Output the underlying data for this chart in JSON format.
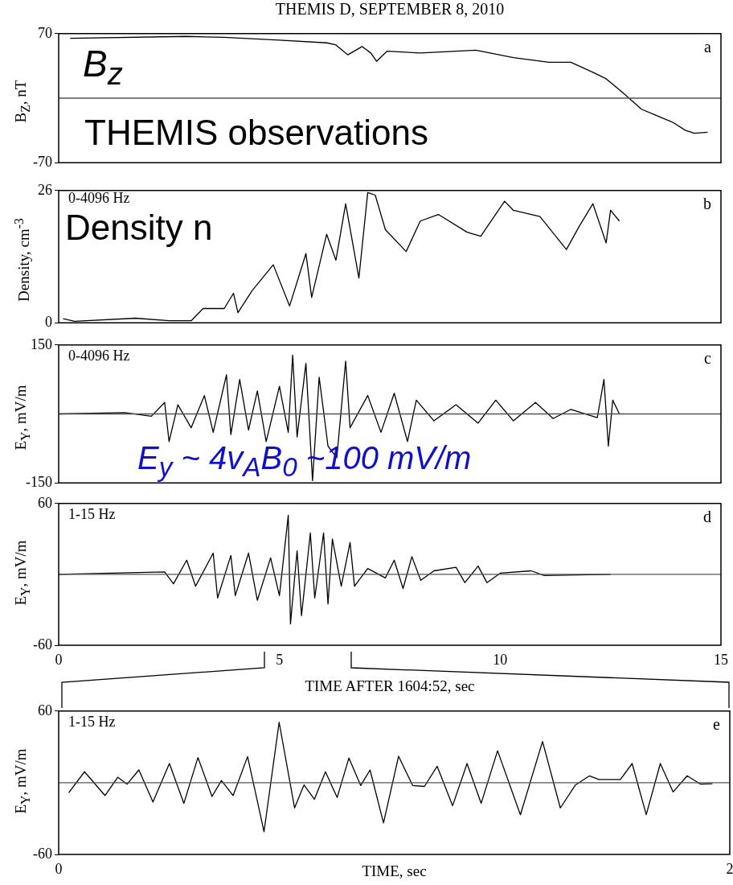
{
  "chart_data": [
    {
      "type": "line",
      "title": "THEMIS D, SEPTEMBER 8, 2010",
      "ylabel": "B$_{Z}$, nT",
      "xlim": [
        0,
        15
      ],
      "ylim": [
        -70,
        70
      ],
      "yticks": [
        -70,
        70
      ],
      "tick_labels": "y",
      "marker": "none",
      "legend": false,
      "grid": false,
      "ref_lines": [
        {
          "axis": "y",
          "value": 0,
          "color": "#555555"
        }
      ],
      "annotations": [
        "a",
        "B$_{z}$",
        "THEMIS observations"
      ],
      "series": [
        {
          "color": "#000000",
          "x": [
            0.26,
            2.9,
            3.74,
            5.0,
            6.07,
            6.27,
            6.55,
            6.87,
            7.07,
            7.2,
            7.44,
            8.19,
            9.45,
            10.3,
            11.1,
            11.6,
            12.1,
            12.4,
            12.8,
            13.2,
            13.5,
            13.9,
            14.2,
            14.4,
            14.7
          ],
          "values": [
            65,
            67,
            66,
            63,
            60,
            58,
            47,
            56,
            49,
            40,
            51,
            49,
            52,
            44,
            39,
            39,
            28,
            21,
            5,
            -12,
            -18,
            -26,
            -35,
            -38,
            -37
          ]
        }
      ]
    },
    {
      "type": "line",
      "ylabel": "Density, cm$^{-3}$",
      "xlim": [
        0,
        15
      ],
      "ylim": [
        0,
        26
      ],
      "yticks": [
        0,
        26
      ],
      "tick_labels": "y",
      "marker": "none",
      "legend": false,
      "grid": false,
      "annotations": [
        "b",
        "0-4096 Hz",
        "Density n"
      ],
      "series": [
        {
          "color": "#000000",
          "x": [
            0.1,
            0.36,
            1.74,
            2.5,
            3.0,
            3.27,
            3.75,
            3.96,
            4.06,
            4.38,
            4.86,
            5.23,
            5.6,
            5.73,
            6.07,
            6.28,
            6.5,
            6.8,
            7.0,
            7.17,
            7.4,
            7.87,
            8.19,
            8.6,
            9.25,
            9.56,
            10.1,
            10.3,
            10.9,
            11.5,
            11.8,
            12.1,
            12.4,
            12.5,
            12.7
          ],
          "values": [
            0.8,
            0.3,
            0.9,
            0.4,
            0.4,
            2.8,
            2.8,
            5.8,
            2,
            6.3,
            11.4,
            3.3,
            13.6,
            5,
            17.4,
            12.3,
            23.4,
            8.8,
            25.6,
            25.1,
            18.3,
            14,
            20,
            21.3,
            17.8,
            17,
            23.9,
            22.1,
            20.9,
            14.4,
            19.1,
            23.4,
            15.7,
            22.1,
            20
          ]
        }
      ]
    },
    {
      "type": "line",
      "ylabel": "E$_{Y}$, mV/m",
      "xlim": [
        0,
        15
      ],
      "ylim": [
        -150,
        150
      ],
      "yticks": [
        -150,
        150
      ],
      "tick_labels": "y",
      "marker": "none",
      "legend": false,
      "grid": false,
      "ref_lines": [
        {
          "axis": "y",
          "value": 0,
          "color": "#555555"
        }
      ],
      "annotations": [
        "c",
        "0-4096 Hz",
        "E$_{y}$ ~ 4v$_{A}$B$_{0}$ ~100 mV/m"
      ],
      "series": [
        {
          "color": "#000000",
          "x": [
            0,
            1.5,
            2.1,
            2.4,
            2.5,
            2.7,
            3.0,
            3.3,
            3.5,
            3.8,
            3.9,
            4.1,
            4.3,
            4.5,
            4.7,
            5.0,
            5.2,
            5.3,
            5.4,
            5.6,
            5.75,
            5.9,
            6.1,
            6.3,
            6.5,
            6.6,
            7.0,
            7.3,
            7.6,
            7.9,
            8.1,
            8.5,
            9.0,
            9.5,
            9.9,
            10.3,
            10.8,
            11.2,
            11.6,
            12.2,
            12.35,
            12.45,
            12.55,
            12.7
          ],
          "values": [
            0,
            3,
            -5,
            25,
            -60,
            20,
            -30,
            40,
            -40,
            85,
            -45,
            75,
            -35,
            50,
            -60,
            60,
            -40,
            128,
            -50,
            110,
            -145,
            80,
            -70,
            -95,
            115,
            -30,
            40,
            -40,
            45,
            -60,
            30,
            -15,
            20,
            -20,
            30,
            -15,
            25,
            -10,
            10,
            -8,
            75,
            -70,
            30,
            0
          ]
        }
      ]
    },
    {
      "type": "line",
      "xlabel": "TIME AFTER 1604:52, sec",
      "ylabel": "E$_{Y}$, mV/m",
      "xlim": [
        0,
        15
      ],
      "xticks": [
        0,
        5,
        10,
        15
      ],
      "ylim": [
        -60,
        60
      ],
      "yticks": [
        -60,
        60
      ],
      "marker": "none",
      "legend": false,
      "grid": false,
      "ref_lines": [
        {
          "axis": "y",
          "value": 0,
          "color": "#555555"
        }
      ],
      "annotations": [
        "d",
        "1-15 Hz"
      ],
      "series": [
        {
          "color": "#000000",
          "x": [
            0,
            2.4,
            2.6,
            2.9,
            3.1,
            3.5,
            3.6,
            3.9,
            4.0,
            4.3,
            4.5,
            4.8,
            5.0,
            5.2,
            5.25,
            5.4,
            5.5,
            5.7,
            5.8,
            6.0,
            6.1,
            6.2,
            6.4,
            6.6,
            6.7,
            7.0,
            7.4,
            7.6,
            7.8,
            8.0,
            8.2,
            8.5,
            9.0,
            9.2,
            9.5,
            9.7,
            10,
            10.7,
            11,
            12.5
          ],
          "values": [
            0,
            2,
            -8,
            12,
            -10,
            18,
            -20,
            16,
            -18,
            18,
            -22,
            14,
            -18,
            50,
            -42,
            20,
            -35,
            35,
            -20,
            35,
            -25,
            30,
            -10,
            27,
            -10,
            5,
            -3,
            12,
            -12,
            15,
            -5,
            3,
            6,
            -7,
            7,
            -7,
            1,
            3,
            -1,
            0
          ]
        }
      ]
    },
    {
      "type": "line",
      "xlabel": "TIME, sec",
      "ylabel": "E$_{Y}$, mV/m",
      "xlim": [
        0,
        2
      ],
      "xticks": [
        0,
        2
      ],
      "ylim": [
        -60,
        60
      ],
      "yticks": [
        -60,
        60
      ],
      "marker": "none",
      "legend": false,
      "grid": false,
      "ref_lines": [
        {
          "axis": "y",
          "value": 0,
          "color": "#555555"
        }
      ],
      "annotations": [
        "e",
        "1-15 Hz"
      ],
      "series": [
        {
          "color": "#000000",
          "x": [
            0.03,
            0.077,
            0.138,
            0.176,
            0.204,
            0.239,
            0.281,
            0.33,
            0.373,
            0.415,
            0.457,
            0.485,
            0.52,
            0.563,
            0.612,
            0.657,
            0.703,
            0.731,
            0.762,
            0.795,
            0.83,
            0.865,
            0.9,
            0.928,
            0.968,
            1.013,
            1.055,
            1.09,
            1.128,
            1.174,
            1.217,
            1.259,
            1.308,
            1.376,
            1.442,
            1.495,
            1.54,
            1.582,
            1.61,
            1.674,
            1.709,
            1.751,
            1.793,
            1.831,
            1.873,
            1.913,
            1.948
          ],
          "values": [
            -8.4,
            9.2,
            -10.7,
            4.6,
            -1.2,
            10.7,
            -16.1,
            16.1,
            -17.3,
            21.1,
            -11.5,
            1.9,
            -10.7,
            21.9,
            -41,
            50.6,
            -21.1,
            -1.9,
            -13.8,
            9.2,
            -12.3,
            20.7,
            -2.3,
            10.7,
            -33.7,
            22.2,
            -2.3,
            -3.1,
            13.8,
            -19.2,
            16.1,
            -17.3,
            26.8,
            -26.8,
            34.5,
            -21.1,
            -1.9,
            5.8,
            2.7,
            2.7,
            16.1,
            -26.8,
            16.1,
            -7.7,
            5.8,
            -1.2,
            -0.8
          ]
        }
      ]
    }
  ]
}
